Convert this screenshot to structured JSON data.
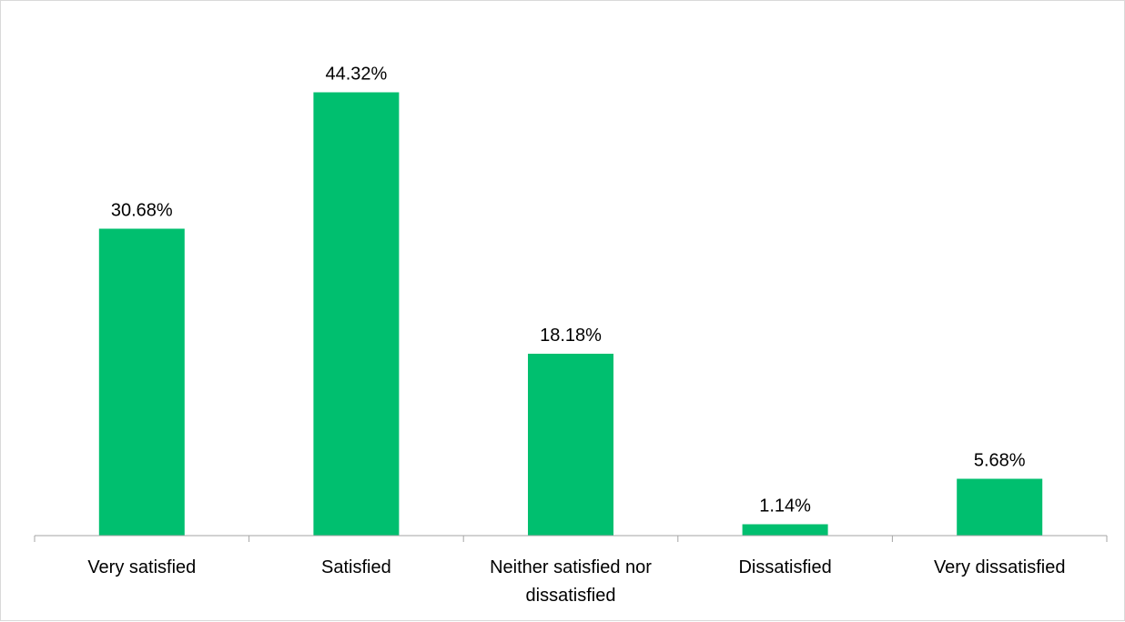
{
  "chart_data": {
    "type": "bar",
    "categories": [
      [
        "Very satisfied"
      ],
      [
        "Satisfied"
      ],
      [
        "Neither satisfied nor",
        "dissatisfied"
      ],
      [
        "Dissatisfied"
      ],
      [
        "Very dissatisfied"
      ]
    ],
    "values": [
      30.68,
      44.32,
      18.18,
      1.14,
      5.68
    ],
    "data_labels": [
      "30.68%",
      "44.32%",
      "18.18%",
      "1.14%",
      "5.68%"
    ],
    "title": "",
    "xlabel": "",
    "ylabel": "",
    "ylim": [
      0,
      50
    ],
    "grid": false,
    "legend": "none",
    "bar_color": "#00BF6F",
    "axis_color": "#A6A6A6"
  }
}
